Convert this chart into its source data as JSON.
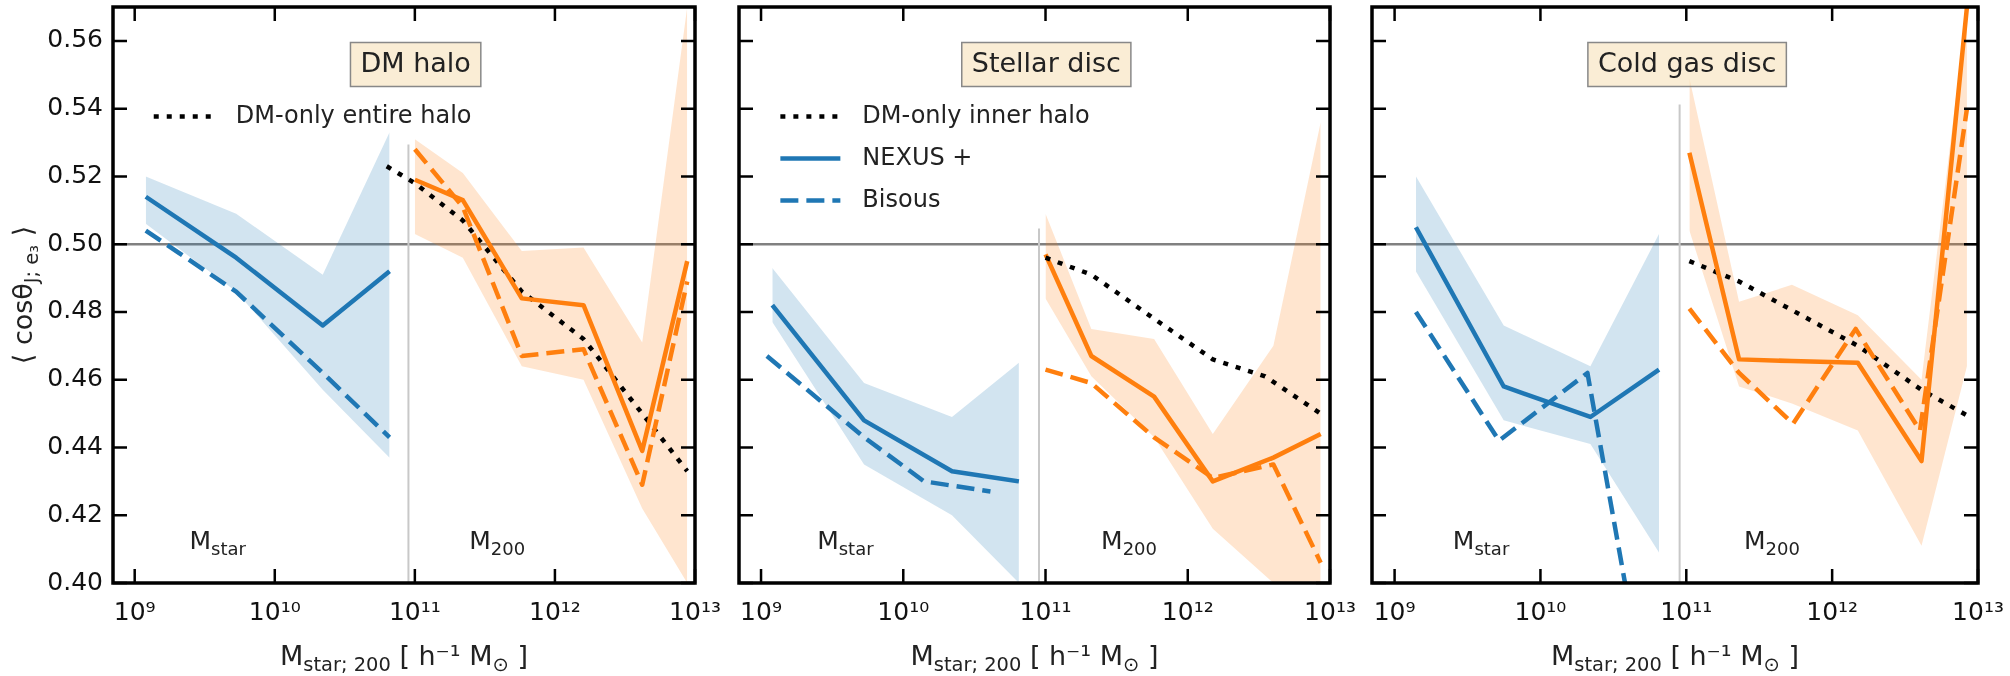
{
  "chart_data": [
    {
      "type": "line",
      "title": "DM halo",
      "xlabel": "M$_{star; 200}$ [ h⁻¹ M$_{⊙}$ ]",
      "ylabel": "⟨ cosθ$_{J; e₃}$ ⟩",
      "log": "x",
      "legend": "top left",
      "xlim": [
        700000000.0,
        10000000000000.0
      ],
      "ylim": [
        0.4,
        0.57
      ],
      "xticks": [
        {
          "value": 1000000000.0,
          "label": "10⁹"
        },
        {
          "value": 10000000000.0,
          "label": "10¹⁰"
        },
        {
          "value": 100000000000.0,
          "label": "10¹¹"
        },
        {
          "value": 1000000000000.0,
          "label": "10¹²"
        },
        {
          "value": 10000000000000.0,
          "label": "10¹³"
        }
      ],
      "yticks": [
        {
          "value": 0.4,
          "label": "0.40"
        },
        {
          "value": 0.42,
          "label": "0.42"
        },
        {
          "value": 0.44,
          "label": "0.44"
        },
        {
          "value": 0.46,
          "label": "0.46"
        },
        {
          "value": 0.48,
          "label": "0.48"
        },
        {
          "value": 0.5,
          "label": "0.50"
        },
        {
          "value": 0.52,
          "label": "0.52"
        },
        {
          "value": 0.54,
          "label": "0.54"
        },
        {
          "value": 0.56,
          "label": "0.56"
        }
      ],
      "ref_lines": [
        {
          "axis": "y",
          "value": 0.5,
          "color": "#808080"
        },
        {
          "axis": "x",
          "value": 90000000000.0,
          "color": "#c8c8c8"
        }
      ],
      "annotations": [
        "M$_{star}$",
        "M$_{200}$"
      ],
      "series": [
        {
          "color": "#1f77b4",
          "line_style": "solid",
          "x": [
            1200000000.0,
            5300000000.0,
            22000000000.0,
            66000000000.0
          ],
          "values": [
            0.514,
            0.496,
            0.476,
            0.492
          ],
          "lower": [
            0.506,
            0.486,
            0.457,
            0.437
          ],
          "upper": [
            0.52,
            0.509,
            0.491,
            0.533
          ]
        },
        {
          "color": "#1f77b4",
          "line_style": "dashed",
          "x": [
            1200000000.0,
            5300000000.0,
            22000000000.0,
            66000000000.0
          ],
          "values": [
            0.504,
            0.486,
            0.462,
            0.443
          ]
        },
        {
          "color": "#ff7f0e",
          "line_style": "solid",
          "x": [
            100000000000.0,
            220000000000.0,
            580000000000.0,
            1600000000000.0,
            4200000000000.0,
            8800000000000.0
          ],
          "values": [
            0.519,
            0.513,
            0.484,
            0.482,
            0.439,
            0.495
          ],
          "lower": [
            0.503,
            0.496,
            0.464,
            0.46,
            0.422,
            0.4
          ],
          "upper": [
            0.531,
            0.521,
            0.498,
            0.499,
            0.471,
            0.57
          ]
        },
        {
          "color": "#ff7f0e",
          "line_style": "dashed",
          "x": [
            100000000000.0,
            220000000000.0,
            580000000000.0,
            1600000000000.0,
            4200000000000.0,
            8800000000000.0
          ],
          "values": [
            0.528,
            0.511,
            0.467,
            0.469,
            0.429,
            0.489
          ]
        },
        {
          "name": "DM-only entire halo",
          "color": "#000000",
          "line_style": "dotted",
          "x": [
            63000000000.0,
            100000000000.0,
            220000000000.0,
            580000000000.0,
            1600000000000.0,
            4200000000000.0,
            8800000000000.0
          ],
          "values": [
            0.523,
            0.518,
            0.507,
            0.486,
            0.472,
            0.45,
            0.433
          ]
        }
      ]
    },
    {
      "type": "line",
      "title": "Stellar disc",
      "xlabel": "M$_{star; 200}$ [ h⁻¹ M$_{⊙}$ ]",
      "log": "x",
      "legend": "top left",
      "tick_labels": "x",
      "xlim": [
        700000000.0,
        10000000000000.0
      ],
      "ylim": [
        0.4,
        0.57
      ],
      "xticks": [
        {
          "value": 1000000000.0,
          "label": "10⁹"
        },
        {
          "value": 10000000000.0,
          "label": "10¹⁰"
        },
        {
          "value": 100000000000.0,
          "label": "10¹¹"
        },
        {
          "value": 1000000000000.0,
          "label": "10¹²"
        },
        {
          "value": 10000000000000.0,
          "label": "10¹³"
        }
      ],
      "yticks": [
        0.4,
        0.42,
        0.44,
        0.46,
        0.48,
        0.5,
        0.52,
        0.54,
        0.56
      ],
      "ref_lines": [
        {
          "axis": "y",
          "value": 0.5,
          "color": "#808080"
        },
        {
          "axis": "x",
          "value": 90000000000.0,
          "color": "#c8c8c8"
        }
      ],
      "annotations": [
        "M$_{star}$",
        "M$_{200}$"
      ],
      "series": [
        {
          "name": "DM-only inner halo",
          "color": "#000000",
          "line_style": "dotted",
          "x": [
            100000000000.0,
            210000000000.0,
            580000000000.0,
            1500000000000.0,
            3500000000000.0,
            8600000000000.0
          ],
          "values": [
            0.496,
            0.491,
            0.478,
            0.466,
            0.461,
            0.45
          ]
        },
        {
          "name": "NEXUS +",
          "color": "#1f77b4",
          "line_style": "solid",
          "x": [
            1200000000.0,
            5300000000.0,
            22000000000.0,
            65000000000.0
          ],
          "values": [
            0.482,
            0.448,
            0.433,
            0.43
          ],
          "lower": [
            0.477,
            0.435,
            0.42,
            0.4
          ],
          "upper": [
            0.493,
            0.459,
            0.449,
            0.465
          ]
        },
        {
          "name": "Bisous",
          "color": "#1f77b4",
          "line_style": "dashed",
          "x": [
            1100000000.0,
            5300000000.0,
            14000000000.0,
            41000000000.0
          ],
          "values": [
            0.467,
            0.443,
            0.43,
            0.427
          ]
        },
        {
          "color": "#ff7f0e",
          "line_style": "solid",
          "x": [
            100000000000.0,
            210000000000.0,
            580000000000.0,
            1500000000000.0,
            4000000000000.0,
            8600000000000.0
          ],
          "values": [
            0.497,
            0.467,
            0.455,
            0.43,
            0.437,
            0.444
          ],
          "lower": [
            0.484,
            0.461,
            0.443,
            0.416,
            0.4,
            0.4
          ],
          "upper": [
            0.509,
            0.475,
            0.472,
            0.444,
            0.47,
            0.536
          ]
        },
        {
          "color": "#ff7f0e",
          "line_style": "dashed",
          "x": [
            100000000000.0,
            210000000000.0,
            580000000000.0,
            1500000000000.0,
            4000000000000.0,
            8600000000000.0
          ],
          "values": [
            0.463,
            0.459,
            0.443,
            0.431,
            0.435,
            0.406
          ]
        }
      ]
    },
    {
      "type": "line",
      "title": "Cold gas disc",
      "xlabel": "M$_{star; 200}$ [ h⁻¹ M$_{⊙}$ ]",
      "log": "x",
      "tick_labels": "x",
      "xlim": [
        700000000.0,
        10000000000000.0
      ],
      "ylim": [
        0.4,
        0.57
      ],
      "xticks": [
        {
          "value": 1000000000.0,
          "label": "10⁹"
        },
        {
          "value": 10000000000.0,
          "label": "10¹⁰"
        },
        {
          "value": 100000000000.0,
          "label": "10¹¹"
        },
        {
          "value": 1000000000000.0,
          "label": "10¹²"
        },
        {
          "value": 10000000000000.0,
          "label": "10¹³"
        }
      ],
      "yticks": [
        0.4,
        0.42,
        0.44,
        0.46,
        0.48,
        0.5,
        0.52,
        0.54,
        0.56
      ],
      "ref_lines": [
        {
          "axis": "y",
          "value": 0.5,
          "color": "#808080"
        },
        {
          "axis": "x",
          "value": 90000000000.0,
          "color": "#c8c8c8"
        }
      ],
      "annotations": [
        "M$_{star}$",
        "M$_{200}$"
      ],
      "series": [
        {
          "color": "#1f77b4",
          "line_style": "solid",
          "x": [
            1400000000.0,
            5600000000.0,
            22000000000.0,
            65000000000.0
          ],
          "values": [
            0.505,
            0.458,
            0.449,
            0.463
          ],
          "lower": [
            0.492,
            0.448,
            0.441,
            0.409
          ],
          "upper": [
            0.52,
            0.476,
            0.464,
            0.503
          ]
        },
        {
          "color": "#1f77b4",
          "line_style": "dashed",
          "x": [
            1400000000.0,
            5200000000.0,
            21000000000.0,
            38000000000.0
          ],
          "values": [
            0.48,
            0.442,
            0.462,
            0.4
          ]
        },
        {
          "color": "#ff7f0e",
          "line_style": "solid",
          "x": [
            105000000000.0,
            230000000000.0,
            530000000000.0,
            1500000000000.0,
            4100000000000.0,
            8400000000000.0
          ],
          "values": [
            0.527,
            0.466,
            0.4655,
            0.465,
            0.436,
            0.57
          ],
          "lower": [
            0.504,
            0.458,
            0.453,
            0.445,
            0.411,
            0.464
          ],
          "upper": [
            0.549,
            0.483,
            0.488,
            0.479,
            0.46,
            0.57
          ]
        },
        {
          "color": "#ff7f0e",
          "line_style": "dashed",
          "x": [
            105000000000.0,
            230000000000.0,
            540000000000.0,
            1450000000000.0,
            4000000000000.0,
            8400000000000.0
          ],
          "values": [
            0.481,
            0.462,
            0.447,
            0.475,
            0.445,
            0.54
          ]
        },
        {
          "color": "#000000",
          "line_style": "dotted",
          "x": [
            105000000000.0,
            230000000000.0,
            1500000000000.0,
            4100000000000.0,
            8800000000000.0
          ],
          "values": [
            0.495,
            0.489,
            0.47,
            0.457,
            0.449
          ]
        }
      ]
    }
  ]
}
